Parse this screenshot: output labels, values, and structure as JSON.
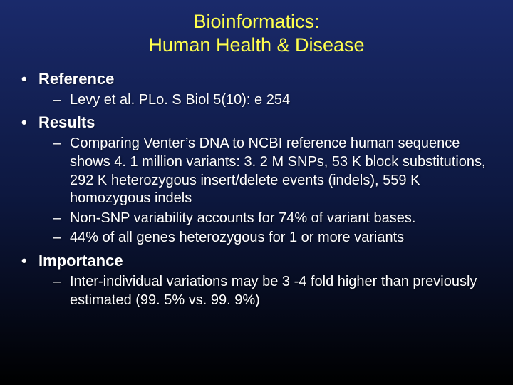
{
  "title_line1": "Bioinformatics:",
  "title_line2": "Human Health & Disease",
  "sections": [
    {
      "heading": "Reference",
      "items": [
        "Levy et al. PLo. S Biol 5(10): e 254"
      ]
    },
    {
      "heading": "Results",
      "items": [
        "Comparing Venter’s DNA to NCBI reference human sequence shows 4. 1 million variants: 3. 2 M SNPs, 53 K block substitutions, 292 K heterozygous insert/delete events (indels), 559 K homozygous indels",
        "Non-SNP variability accounts for 74% of variant bases.",
        "44% of all genes heterozygous for 1 or more variants"
      ]
    },
    {
      "heading": "Importance",
      "items": [
        "Inter-individual variations may be 3 -4 fold higher than previously estimated  (99. 5% vs. 99. 9%)"
      ]
    }
  ],
  "colors": {
    "title": "#ffff4d",
    "text": "#ffffff",
    "bg_top": "#1a2a6b",
    "bg_mid": "#0d1840",
    "bg_bottom": "#000000"
  }
}
